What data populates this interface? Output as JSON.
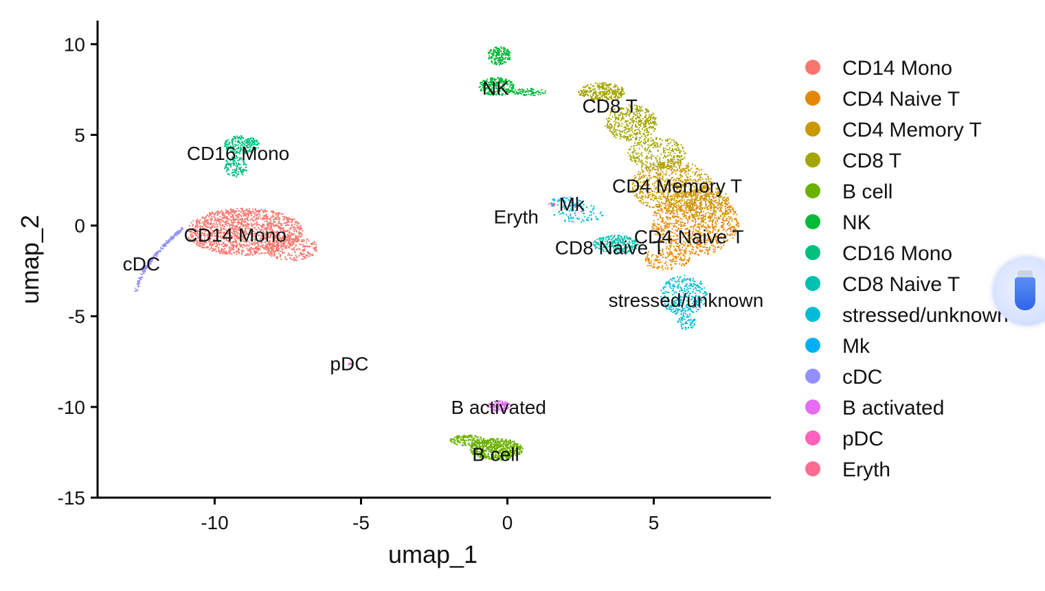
{
  "chart_data": {
    "type": "scatter",
    "xlabel": "umap_1",
    "ylabel": "umap_2",
    "xlim": [
      -14,
      9
    ],
    "ylim": [
      -15,
      11.3
    ],
    "xticks": [
      -10,
      -5,
      0,
      5
    ],
    "yticks": [
      -15,
      -10,
      -5,
      0,
      5,
      10
    ],
    "grid": false,
    "legend_position": "right",
    "clusters": [
      {
        "name": "CD14 Mono",
        "color": "#F8766D",
        "label_pos": [
          -9.3,
          -0.5
        ]
      },
      {
        "name": "CD4 Naive T",
        "color": "#E58700",
        "label_pos": [
          6.2,
          -0.6
        ]
      },
      {
        "name": "CD4 Memory T",
        "color": "#C99800",
        "label_pos": [
          5.8,
          2.2
        ]
      },
      {
        "name": "CD8 T",
        "color": "#A3A500",
        "label_pos": [
          3.5,
          6.6
        ]
      },
      {
        "name": "B cell",
        "color": "#6BB100",
        "label_pos": [
          -0.4,
          -12.6
        ]
      },
      {
        "name": "NK",
        "color": "#00BA38",
        "label_pos": [
          -0.4,
          7.6
        ]
      },
      {
        "name": "CD16 Mono",
        "color": "#00BF7D",
        "label_pos": [
          -9.2,
          4.0
        ]
      },
      {
        "name": "CD8 Naive T",
        "color": "#00C0AF",
        "label_pos": [
          3.5,
          -1.2
        ]
      },
      {
        "name": "stressed/unknown",
        "color": "#00BCD8",
        "label_pos": [
          6.1,
          -4.1
        ]
      },
      {
        "name": "Mk",
        "color": "#00B0F6",
        "label_pos": [
          2.2,
          1.2
        ]
      },
      {
        "name": "cDC",
        "color": "#9590FF",
        "label_pos": [
          -12.5,
          -2.1
        ]
      },
      {
        "name": "B activated",
        "color": "#E76BF3",
        "label_pos": [
          -0.3,
          -10.0
        ]
      },
      {
        "name": "pDC",
        "color": "#FF62BC",
        "label_pos": [
          -5.4,
          -7.6
        ]
      },
      {
        "name": "Eryth",
        "color": "#FF6C91",
        "label_pos": [
          0.3,
          0.5
        ]
      }
    ]
  }
}
